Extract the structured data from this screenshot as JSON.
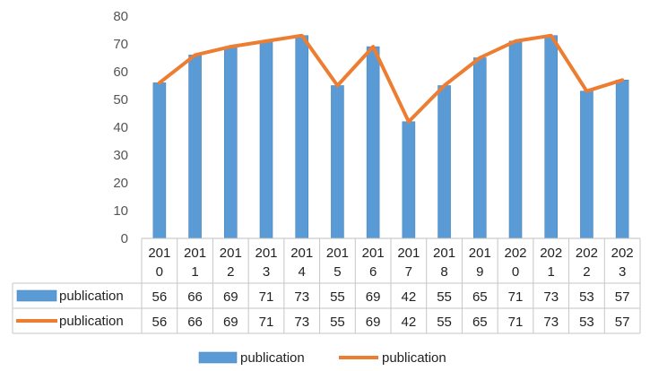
{
  "chart_data": {
    "type": "bar",
    "categories": [
      "2010",
      "2011",
      "2012",
      "2013",
      "2014",
      "2015",
      "2016",
      "2017",
      "2018",
      "2019",
      "2020",
      "2021",
      "2022",
      "2023"
    ],
    "category_lines": [
      [
        "201",
        "0"
      ],
      [
        "201",
        "1"
      ],
      [
        "201",
        "2"
      ],
      [
        "201",
        "3"
      ],
      [
        "201",
        "4"
      ],
      [
        "201",
        "5"
      ],
      [
        "201",
        "6"
      ],
      [
        "201",
        "7"
      ],
      [
        "201",
        "8"
      ],
      [
        "201",
        "9"
      ],
      [
        "202",
        "0"
      ],
      [
        "202",
        "1"
      ],
      [
        "202",
        "2"
      ],
      [
        "202",
        "3"
      ]
    ],
    "series": [
      {
        "name": "publication",
        "type": "bar",
        "color": "#5B9BD5",
        "values": [
          56,
          66,
          69,
          71,
          73,
          55,
          69,
          42,
          55,
          65,
          71,
          73,
          53,
          57
        ]
      },
      {
        "name": "publication",
        "type": "line",
        "color": "#ED7D31",
        "values": [
          56,
          66,
          69,
          71,
          73,
          55,
          69,
          42,
          55,
          65,
          71,
          73,
          53,
          57
        ]
      }
    ],
    "ylim": [
      0,
      80
    ],
    "yticks": [
      0,
      10,
      20,
      30,
      40,
      50,
      60,
      70,
      80
    ],
    "grid": false,
    "data_table": true,
    "legend": "bottom"
  }
}
